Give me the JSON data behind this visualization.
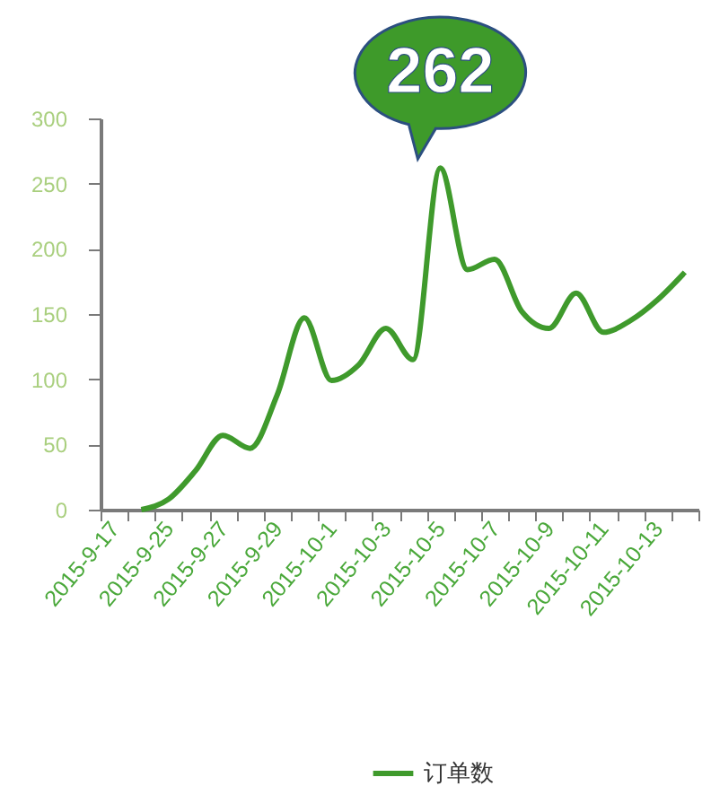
{
  "chart_data": {
    "type": "line",
    "categories": [
      "2015-9-17",
      null,
      "2015-9-25",
      null,
      "2015-9-27",
      null,
      "2015-9-29",
      null,
      "2015-10-1",
      null,
      "2015-10-3",
      null,
      "2015-10-5",
      null,
      "2015-10-7",
      null,
      "2015-10-9",
      null,
      "2015-10-11",
      null,
      "2015-10-13",
      null
    ],
    "series": [
      {
        "name": "订单数",
        "color": "#3f9a2c",
        "values": [
          null,
          0,
          8,
          30,
          57,
          47,
          88,
          147,
          99,
          111,
          139,
          115,
          262,
          184,
          192,
          152,
          139,
          166,
          136,
          145,
          161,
          182
        ]
      }
    ],
    "ylim": [
      0,
      300
    ],
    "yticks": [
      0,
      50,
      100,
      150,
      200,
      250,
      300
    ],
    "grid": false,
    "legend": "bottom",
    "marker": "none",
    "line_style": "solid",
    "annotations": [
      {
        "text": "262",
        "x": "2015-10-5",
        "y": 262
      }
    ]
  }
}
